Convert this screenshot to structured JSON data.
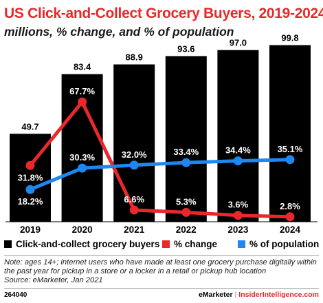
{
  "header": {
    "title": "US Click-and-Collect Grocery Buyers, 2019-2024",
    "subtitle": "millions, % change, and % of population"
  },
  "chart_data": {
    "type": "bar",
    "categories": [
      "2019",
      "2020",
      "2021",
      "2022",
      "2023",
      "2024"
    ],
    "series": [
      {
        "name": "Click-and-collect grocery buyers",
        "type": "bar",
        "values": [
          49.7,
          83.4,
          88.9,
          93.6,
          97.0,
          99.8
        ],
        "labels": [
          "49.7",
          "83.4",
          "88.9",
          "93.6",
          "97.0",
          "99.8"
        ],
        "color": "#000000"
      },
      {
        "name": "% change",
        "type": "line",
        "values": [
          31.8,
          67.7,
          6.6,
          5.3,
          3.6,
          2.8
        ],
        "labels": [
          "31.8%",
          "67.7%",
          "6.6%",
          "5.3%",
          "3.6%",
          "2.8%"
        ],
        "color": "#e8282a"
      },
      {
        "name": "% of population",
        "type": "line",
        "values": [
          18.2,
          30.3,
          32.0,
          33.4,
          34.4,
          35.1
        ],
        "labels": [
          "18.2%",
          "30.3%",
          "32.0%",
          "33.4%",
          "34.4%",
          "35.1%"
        ],
        "color": "#1e87f0"
      }
    ],
    "ylim_bars": [
      0,
      100
    ],
    "ylim_lines": [
      0,
      100
    ],
    "legend_position": "bottom",
    "grid": false
  },
  "footnote": {
    "note": "Note: ages 14+; internet users who have made at least one grocery purchase digitally within the past year for pickup in a store or a locker in a retail or pickup hub location",
    "source": "Source: eMarketer, Jan 2021"
  },
  "footer": {
    "chart_id": "264040",
    "brand_1": "eMarketer",
    "separator": "|",
    "brand_2": "InsiderIntelligence.com"
  }
}
